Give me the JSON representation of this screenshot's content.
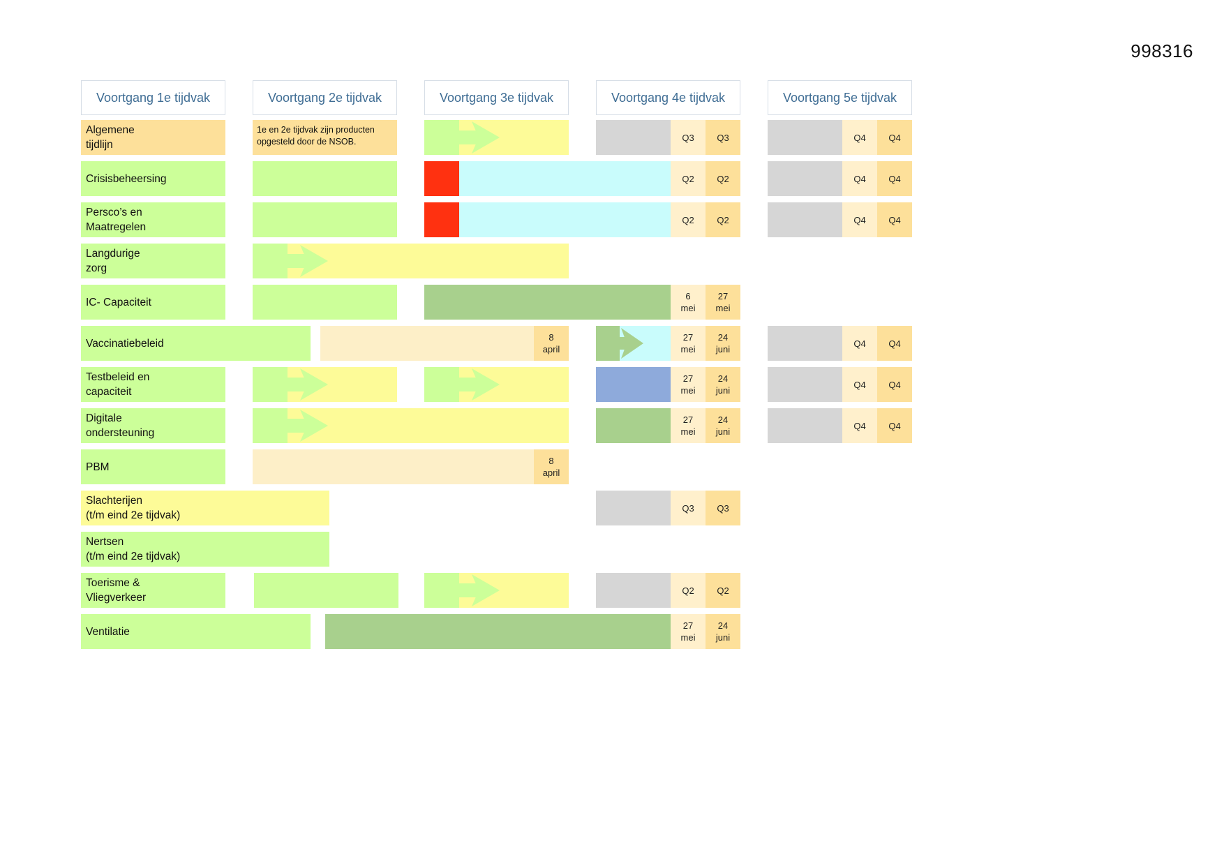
{
  "document_number": "998316",
  "headers": [
    "Voortgang 1e tijdvak",
    "Voortgang 2e tijdvak",
    "Voortgang 3e tijdvak",
    "Voortgang 4e tijdvak",
    "Voortgang 5e tijdvak"
  ],
  "rows": [
    {
      "label": "Algemene\ntijdlijn",
      "note": "1e en 2e tijdvak zijn producten\nopgesteld door de NSOB.",
      "q4a": "Q3",
      "q4b": "Q3",
      "q5a": "Q4",
      "q5b": "Q4"
    },
    {
      "label": "Crisisbeheersing",
      "q4a": "Q2",
      "q4b": "Q2",
      "q5a": "Q4",
      "q5b": "Q4"
    },
    {
      "label": "Persco’s en\nMaatregelen",
      "q4a": "Q2",
      "q4b": "Q2",
      "q5a": "Q4",
      "q5b": "Q4"
    },
    {
      "label": "Langdurige\nzorg"
    },
    {
      "label": "IC- Capaciteit",
      "q4a": "6\nmei",
      "q4b": "27\nmei"
    },
    {
      "label": "Vaccinatiebeleid",
      "q2": "8\napril",
      "q4a": "27\nmei",
      "q4b": "24\njuni",
      "q5a": "Q4",
      "q5b": "Q4"
    },
    {
      "label": "Testbeleid en\ncapaciteit",
      "q4a": "27\nmei",
      "q4b": "24\njuni",
      "q5a": "Q4",
      "q5b": "Q4"
    },
    {
      "label": "Digitale\nondersteuning",
      "q4a": "27\nmei",
      "q4b": "24\njuni",
      "q5a": "Q4",
      "q5b": "Q4"
    },
    {
      "label": "PBM",
      "q2": "8\napril"
    },
    {
      "label": "Slachterijen\n(t/m eind 2e tijdvak)",
      "q4a": "Q3",
      "q4b": "Q3"
    },
    {
      "label": "Nertsen\n(t/m eind 2e tijdvak)"
    },
    {
      "label": "Toerisme &\nVliegverkeer",
      "q4a": "Q2",
      "q4b": "Q2"
    },
    {
      "label": "Ventilatie",
      "q4a": "27\nmei",
      "q4b": "24\njuni"
    }
  ]
}
